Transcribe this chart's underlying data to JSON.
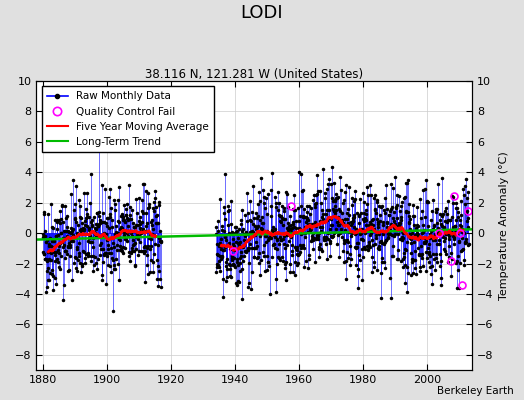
{
  "title": "LODI",
  "subtitle": "38.116 N, 121.281 W (United States)",
  "ylabel": "Temperature Anomaly (°C)",
  "credit": "Berkeley Earth",
  "ylim": [
    -9,
    10
  ],
  "yticks": [
    -8,
    -6,
    -4,
    -2,
    0,
    2,
    4,
    6,
    8,
    10
  ],
  "xlim": [
    1878,
    2014
  ],
  "xticks": [
    1880,
    1900,
    1920,
    1940,
    1960,
    1980,
    2000
  ],
  "start_year": 1880,
  "gap_start": 1917,
  "gap_end": 1934,
  "end_year": 2013,
  "seed": 42,
  "bg_color": "#e0e0e0",
  "plot_bg_color": "#ffffff",
  "line_color_raw": "#0000ff",
  "dot_color_raw": "#000000",
  "color_qc": "#ff00ff",
  "color_moving_avg": "#ff0000",
  "color_trend": "#00bb00",
  "figsize": [
    5.24,
    4.0
  ],
  "dpi": 100
}
